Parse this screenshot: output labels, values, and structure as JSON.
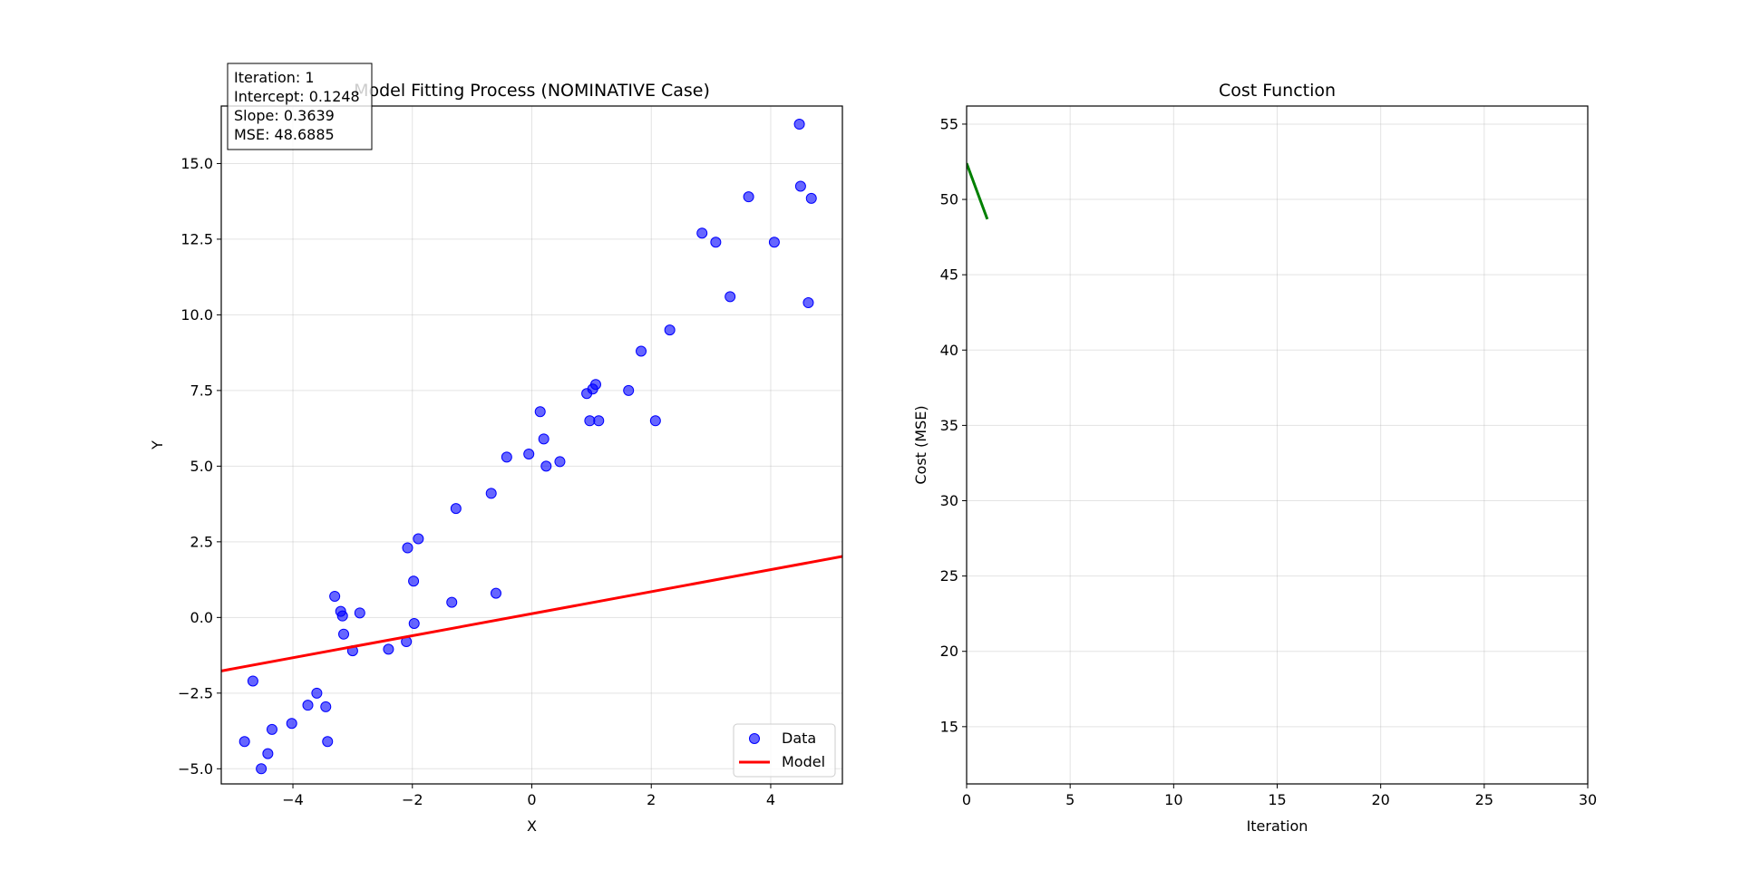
{
  "chart_data": [
    {
      "type": "scatter",
      "title": "Model Fitting Process (NOMINATIVE Case)",
      "xlabel": "X",
      "ylabel": "Y",
      "xlim": [
        -5.2,
        5.2
      ],
      "ylim": [
        -5.5,
        16.9
      ],
      "xticks": [
        -4,
        -2,
        0,
        2,
        4
      ],
      "xtick_labels": [
        "−4",
        "−2",
        "0",
        "2",
        "4"
      ],
      "yticks": [
        -5.0,
        -2.5,
        0.0,
        2.5,
        5.0,
        7.5,
        10.0,
        12.5,
        15.0
      ],
      "ytick_labels": [
        "−5.0",
        "−2.5",
        "0.0",
        "2.5",
        "5.0",
        "7.5",
        "10.0",
        "12.5",
        "15.0"
      ],
      "grid": true,
      "legend_position": "bottom-right",
      "info_box": [
        "Iteration: 1",
        "Intercept: 0.1248",
        "Slope: 0.3639",
        "MSE: 48.6885"
      ],
      "series": [
        {
          "name": "Data",
          "kind": "scatter",
          "color": "#0000ff",
          "points": [
            [
              -4.81,
              -4.1
            ],
            [
              -4.67,
              -2.1
            ],
            [
              -4.53,
              -5.0
            ],
            [
              -4.42,
              -4.5
            ],
            [
              -4.35,
              -3.7
            ],
            [
              -4.02,
              -3.5
            ],
            [
              -3.75,
              -2.9
            ],
            [
              -3.6,
              -2.5
            ],
            [
              -3.45,
              -2.95
            ],
            [
              -3.42,
              -4.1
            ],
            [
              -3.3,
              0.7
            ],
            [
              -3.2,
              0.2
            ],
            [
              -3.17,
              0.05
            ],
            [
              -3.15,
              -0.55
            ],
            [
              -3.0,
              -1.1
            ],
            [
              -2.88,
              0.15
            ],
            [
              -2.4,
              -1.05
            ],
            [
              -2.1,
              -0.8
            ],
            [
              -2.08,
              2.3
            ],
            [
              -1.98,
              1.2
            ],
            [
              -1.97,
              -0.2
            ],
            [
              -1.9,
              2.6
            ],
            [
              -1.34,
              0.5
            ],
            [
              -1.27,
              3.6
            ],
            [
              -0.68,
              4.1
            ],
            [
              -0.6,
              0.8
            ],
            [
              -0.42,
              5.3
            ],
            [
              -0.05,
              5.4
            ],
            [
              0.14,
              6.8
            ],
            [
              0.2,
              5.9
            ],
            [
              0.24,
              5.0
            ],
            [
              0.47,
              5.15
            ],
            [
              0.92,
              7.4
            ],
            [
              0.97,
              6.5
            ],
            [
              1.02,
              7.55
            ],
            [
              1.07,
              7.7
            ],
            [
              1.12,
              6.5
            ],
            [
              1.62,
              7.5
            ],
            [
              1.83,
              8.8
            ],
            [
              2.07,
              6.5
            ],
            [
              2.31,
              9.5
            ],
            [
              2.85,
              12.7
            ],
            [
              3.08,
              12.4
            ],
            [
              3.32,
              10.6
            ],
            [
              3.63,
              13.9
            ],
            [
              4.06,
              12.4
            ],
            [
              4.48,
              16.3
            ],
            [
              4.5,
              14.25
            ],
            [
              4.63,
              10.4
            ],
            [
              4.68,
              13.85
            ]
          ]
        },
        {
          "name": "Model",
          "kind": "line",
          "color": "#ff0000",
          "intercept": 0.1248,
          "slope": 0.3639
        }
      ]
    },
    {
      "type": "line",
      "title": "Cost Function",
      "xlabel": "Iteration",
      "ylabel": "Cost (MSE)",
      "xlim": [
        0,
        30
      ],
      "ylim": [
        11.2,
        56.2
      ],
      "xticks": [
        0,
        5,
        10,
        15,
        20,
        25,
        30
      ],
      "xtick_labels": [
        "0",
        "5",
        "10",
        "15",
        "20",
        "25",
        "30"
      ],
      "yticks": [
        15,
        20,
        25,
        30,
        35,
        40,
        45,
        50,
        55
      ],
      "ytick_labels": [
        "15",
        "20",
        "25",
        "30",
        "35",
        "40",
        "45",
        "50",
        "55"
      ],
      "grid": true,
      "series": [
        {
          "kind": "line",
          "color": "#008000",
          "x": [
            0,
            1
          ],
          "y": [
            52.4,
            48.6885
          ]
        }
      ]
    }
  ]
}
